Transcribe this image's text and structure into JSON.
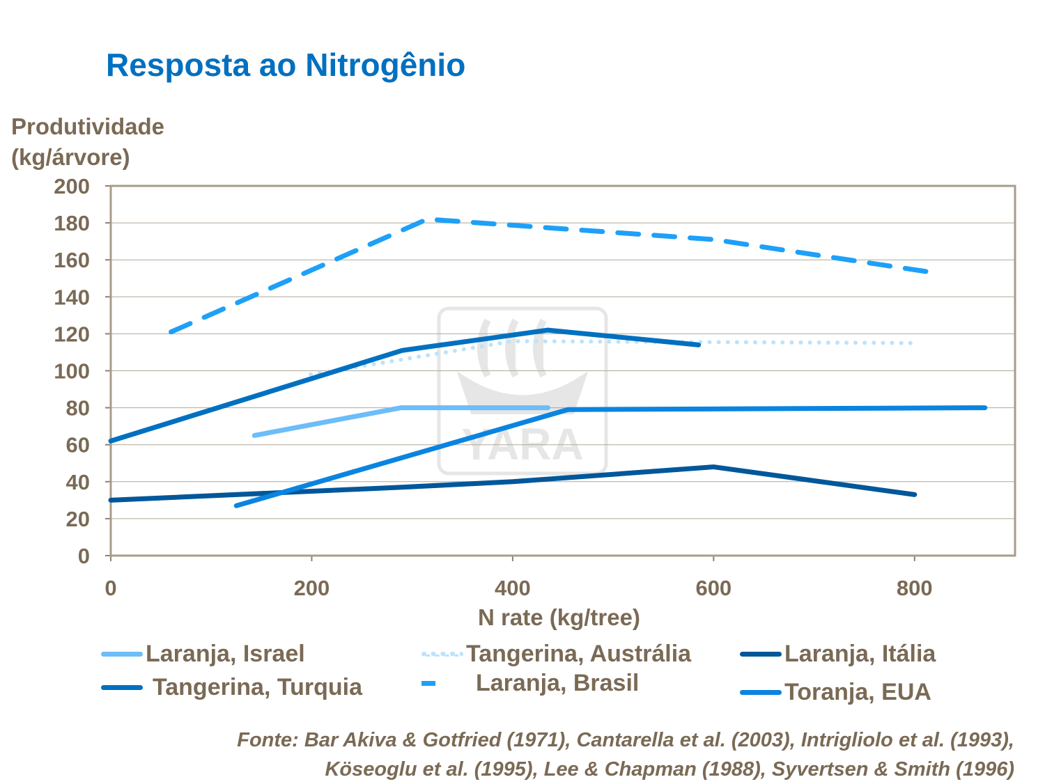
{
  "chart_data": {
    "type": "line",
    "title": "Resposta ao Nitrogênio",
    "ylabel_lines": [
      "Produtividade",
      "(kg/árvore)"
    ],
    "xlabel": "N rate (kg/tree)",
    "xlim": [
      0,
      900
    ],
    "ylim": [
      0,
      200
    ],
    "xticks": [
      0,
      200,
      400,
      600,
      800
    ],
    "yticks": [
      0,
      20,
      40,
      60,
      80,
      100,
      120,
      140,
      160,
      180,
      200
    ],
    "grid": "horizontal",
    "legend_position": "bottom",
    "series": [
      {
        "name": "Laranja, Israel",
        "color": "#6cbdf8",
        "style": "solid",
        "points": [
          [
            143,
            65
          ],
          [
            289,
            80
          ],
          [
            435,
            80
          ]
        ]
      },
      {
        "name": "Tangerina, Austrália",
        "color": "#bde3fb",
        "style": "dotted",
        "points": [
          [
            199,
            98
          ],
          [
            289,
            106
          ],
          [
            400,
            116
          ],
          [
            800,
            115
          ]
        ]
      },
      {
        "name": "Laranja, Itália",
        "color": "#00579a",
        "style": "solid",
        "points": [
          [
            0,
            30
          ],
          [
            290,
            37
          ],
          [
            400,
            40
          ],
          [
            600,
            48
          ],
          [
            800,
            33
          ]
        ]
      },
      {
        "name": "Tangerina, Turquia",
        "color": "#0070c0",
        "style": "solid",
        "points": [
          [
            0,
            62
          ],
          [
            290,
            111
          ],
          [
            435,
            122
          ],
          [
            585,
            114
          ]
        ]
      },
      {
        "name": "Laranja, Brasil",
        "color": "#1ea0f8",
        "style": "dashed",
        "points": [
          [
            60,
            121
          ],
          [
            315,
            182
          ],
          [
            600,
            171
          ],
          [
            820,
            153
          ]
        ]
      },
      {
        "name": "Toranja, EUA",
        "color": "#0a84e0",
        "style": "solid",
        "points": [
          [
            125,
            27
          ],
          [
            455,
            79
          ],
          [
            870,
            80
          ]
        ]
      }
    ]
  },
  "watermark": "YARA",
  "source": [
    "Fonte: Bar Akiva & Gotfried  (1971), Cantarella et al. (2003), Intrigliolo et al. (1993),",
    "Köseoglu et al. (1995), Lee & Chapman (1988), Syvertsen & Smith (1996)"
  ]
}
